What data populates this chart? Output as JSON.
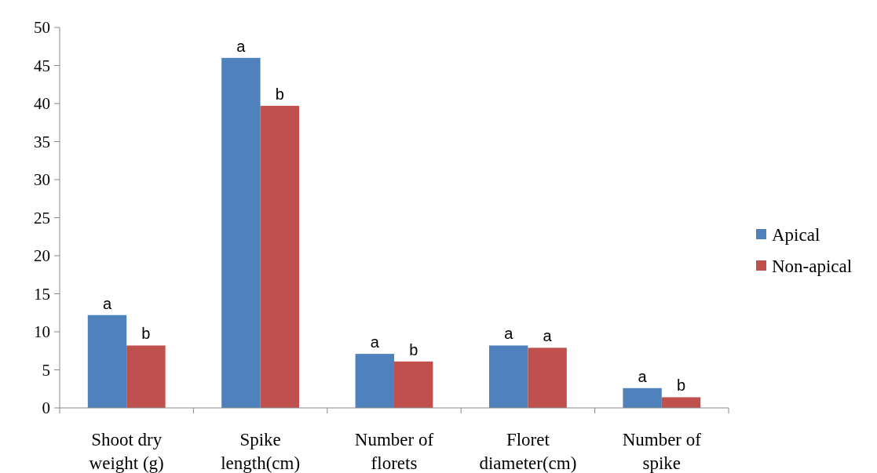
{
  "chart_data": {
    "type": "bar",
    "categories": [
      "Shoot dry weight (g)",
      "Spike length(cm)",
      "Number of florets",
      "Floret diameter(cm)",
      "Number of spike"
    ],
    "series": [
      {
        "name": "Apical",
        "color": "#4f81bd",
        "values": [
          12.2,
          46.0,
          7.1,
          8.2,
          2.6
        ],
        "value_labels": [
          "a",
          "a",
          "a",
          "a",
          "a"
        ]
      },
      {
        "name": "Non-apical",
        "color": "#c0504d",
        "values": [
          8.2,
          39.7,
          6.1,
          7.9,
          1.4
        ],
        "value_labels": [
          "b",
          "b",
          "b",
          "a",
          "b"
        ]
      }
    ],
    "ylim": [
      0,
      50
    ],
    "yticks": [
      0,
      5,
      10,
      15,
      20,
      25,
      30,
      35,
      40,
      45,
      50
    ],
    "grid": false,
    "legend": "right"
  }
}
